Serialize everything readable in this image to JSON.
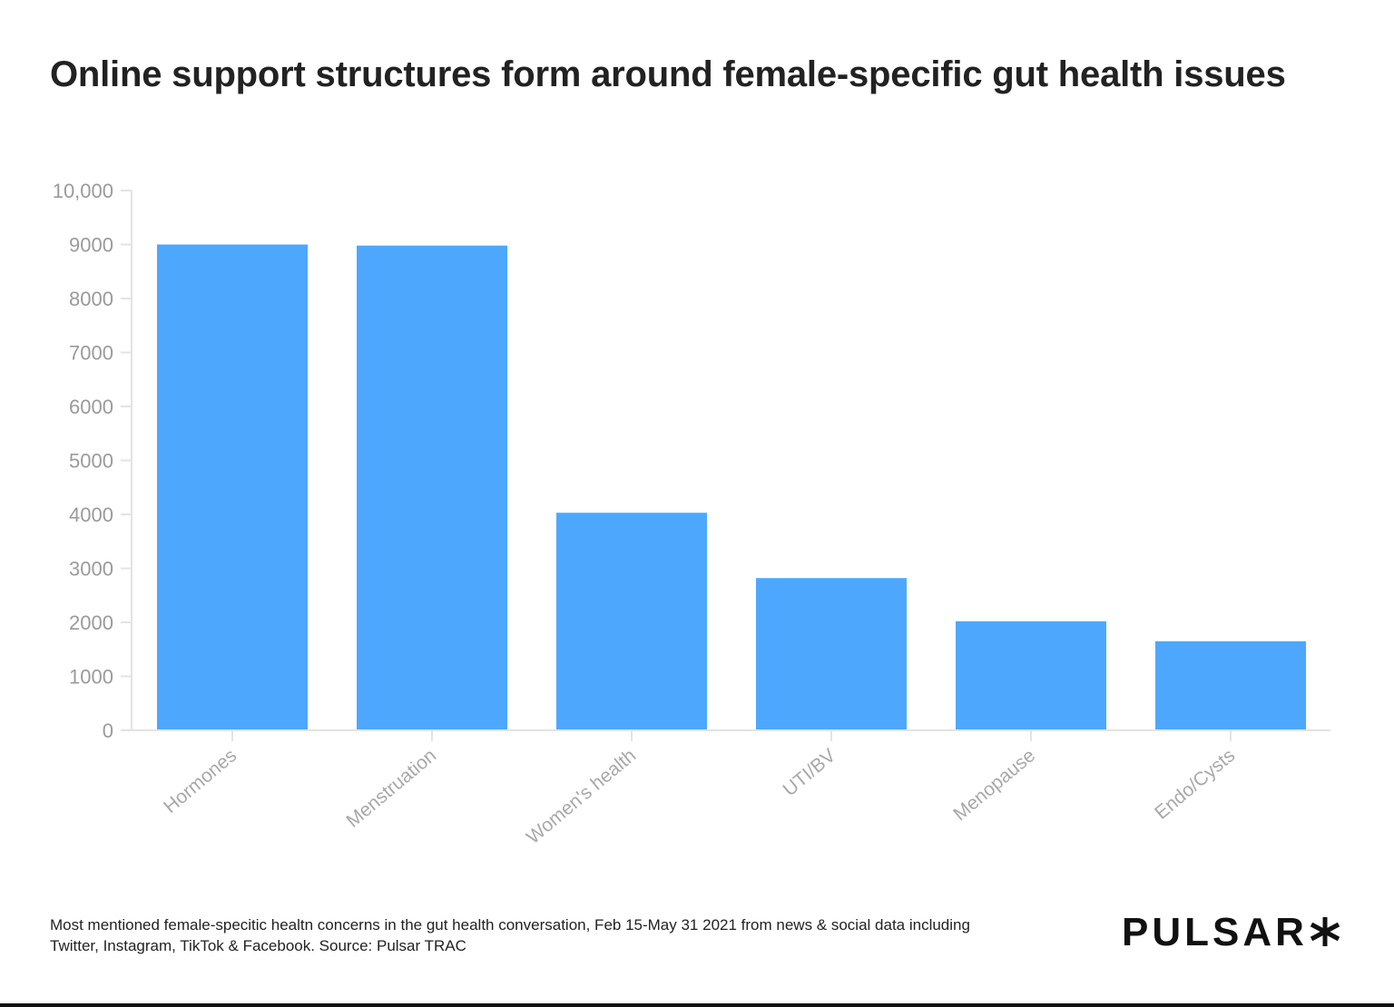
{
  "title": "Online support structures form around female-specific gut health issues",
  "footnote": {
    "line1": "Most mentioned female-specitic healtn concerns in the gut health conversation, Feb 15-May 31 2021 from news & social data including",
    "line2": "Twitter, Instagram, TikTok & Facebook. Source: Pulsar TRAC"
  },
  "brand": {
    "logo_text": "PULSAR",
    "logo_icon": "asterisk-icon"
  },
  "chart_data": {
    "type": "bar",
    "title": "Online support structures form around female-specific gut health issues",
    "categories": [
      "Hormones",
      "Menstruation",
      "Women's health",
      "UTI/BV",
      "Menopause",
      "Endo/Cysts"
    ],
    "values": [
      9000,
      8980,
      4030,
      2820,
      2020,
      1650
    ],
    "ylim": [
      0,
      10000
    ],
    "yticks": [
      0,
      1000,
      2000,
      3000,
      4000,
      5000,
      6000,
      7000,
      8000,
      9000,
      10000
    ],
    "ytick_labels": [
      "0",
      "1000",
      "2000",
      "3000",
      "4000",
      "5000",
      "6000",
      "7000",
      "8000",
      "9000",
      "10,000"
    ],
    "xlabel": "",
    "ylabel": "",
    "grid": false,
    "legend": "none",
    "bar_color": "#4da8fd",
    "axis_color": "#e3e3e3"
  }
}
